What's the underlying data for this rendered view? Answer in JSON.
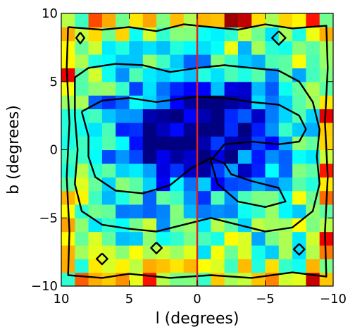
{
  "chart_data": {
    "type": "heatmap",
    "title": "",
    "xlabel": "l (degrees)",
    "ylabel": "b (degrees)",
    "xlim": [
      10,
      -10
    ],
    "ylim": [
      -10,
      10
    ],
    "x_ticks": [
      10,
      5,
      0,
      -5,
      -10
    ],
    "x_tick_labels": [
      "10",
      "5",
      "0",
      "−5",
      "−10"
    ],
    "y_ticks": [
      10,
      5,
      0,
      -5,
      -10
    ],
    "y_tick_labels": [
      "10",
      "5",
      "0",
      "−5",
      "−10"
    ],
    "grid": false,
    "colormap": "jet",
    "background_color": "#80ff80",
    "marker_line": {
      "axis": "x",
      "value": 0,
      "color": "#e02020"
    },
    "n_bins": 20,
    "contour_color": "#000000",
    "contours": [
      {
        "level": "inner",
        "points": [
          [
            8.5,
            2.8
          ],
          [
            7,
            3.6
          ],
          [
            5,
            3.8
          ],
          [
            3,
            3.5
          ],
          [
            1.5,
            3.7
          ],
          [
            0,
            3.9
          ],
          [
            -2,
            3.8
          ],
          [
            -4,
            3.5
          ],
          [
            -6,
            3.3
          ],
          [
            -7.5,
            2.5
          ],
          [
            -8,
            1.5
          ],
          [
            -7.5,
            0.6
          ],
          [
            -6,
            0.4
          ],
          [
            -4,
            0.6
          ],
          [
            -2,
            0.4
          ],
          [
            -1,
            -0.8
          ],
          [
            -1.5,
            -2.5
          ],
          [
            -3,
            -3.8
          ],
          [
            -5,
            -4.2
          ],
          [
            -6.5,
            -3.8
          ],
          [
            -6,
            -2.8
          ],
          [
            -4,
            -2.3
          ],
          [
            -2.5,
            -1.8
          ],
          [
            -2,
            -1
          ],
          [
            -1,
            -0.6
          ],
          [
            0.5,
            -1.4
          ],
          [
            2,
            -2.6
          ],
          [
            4,
            -3.2
          ],
          [
            6,
            -3.0
          ],
          [
            7.5,
            -2.0
          ],
          [
            8,
            -0.5
          ],
          [
            8,
            1
          ],
          [
            8.5,
            2.8
          ]
        ]
      },
      {
        "level": "middle",
        "points": [
          [
            9,
            5.3
          ],
          [
            8,
            6.0
          ],
          [
            6,
            6.3
          ],
          [
            4,
            6.2
          ],
          [
            2,
            5.7
          ],
          [
            0,
            6.0
          ],
          [
            -2,
            6.2
          ],
          [
            -4,
            6.0
          ],
          [
            -6,
            5.8
          ],
          [
            -7.5,
            5.0
          ],
          [
            -8.5,
            3.5
          ],
          [
            -9,
            1.5
          ],
          [
            -8.8,
            -0.5
          ],
          [
            -9,
            -2.5
          ],
          [
            -8.5,
            -4.5
          ],
          [
            -7,
            -5.7
          ],
          [
            -5,
            -6.0
          ],
          [
            -3,
            -5.5
          ],
          [
            -1,
            -5.0
          ],
          [
            1,
            -5.5
          ],
          [
            3,
            -6.0
          ],
          [
            5,
            -5.8
          ],
          [
            7,
            -5.5
          ],
          [
            8.5,
            -4.5
          ],
          [
            9,
            -2.5
          ],
          [
            8.8,
            0
          ],
          [
            9,
            2.5
          ],
          [
            9,
            5.3
          ]
        ]
      },
      {
        "level": "outer",
        "points": [
          [
            9.5,
            9.0
          ],
          [
            7,
            8.8
          ],
          [
            5,
            9.0
          ],
          [
            3,
            8.7
          ],
          [
            1,
            9.2
          ],
          [
            -1,
            9.0
          ],
          [
            -3,
            8.8
          ],
          [
            -5,
            9.2
          ],
          [
            -7,
            8.9
          ],
          [
            -9.5,
            9.1
          ],
          [
            -9.6,
            6
          ],
          [
            -9.4,
            2
          ],
          [
            -9.6,
            -2
          ],
          [
            -9.4,
            -6
          ],
          [
            -9.5,
            -9.3
          ],
          [
            -7,
            -9.0
          ],
          [
            -4,
            -9.4
          ],
          [
            -1,
            -9.2
          ],
          [
            2,
            -9.4
          ],
          [
            5,
            -9.1
          ],
          [
            7,
            -9.4
          ],
          [
            9.5,
            -9.2
          ],
          [
            9.4,
            -6
          ],
          [
            9.6,
            -2
          ],
          [
            9.4,
            2
          ],
          [
            9.6,
            6
          ],
          [
            9.5,
            9.0
          ]
        ]
      },
      {
        "level": "island-1",
        "points": [
          [
            8.6,
            8.6
          ],
          [
            8.3,
            8.2
          ],
          [
            8.6,
            7.8
          ],
          [
            8.9,
            8.2
          ],
          [
            8.6,
            8.6
          ]
        ]
      },
      {
        "level": "island-2",
        "points": [
          [
            -6.0,
            8.7
          ],
          [
            -6.5,
            8.2
          ],
          [
            -6.0,
            7.7
          ],
          [
            -5.5,
            8.2
          ],
          [
            -6.0,
            8.7
          ]
        ]
      },
      {
        "level": "island-3",
        "points": [
          [
            3.0,
            -6.8
          ],
          [
            2.6,
            -7.2
          ],
          [
            3.0,
            -7.6
          ],
          [
            3.4,
            -7.2
          ],
          [
            3.0,
            -6.8
          ]
        ]
      },
      {
        "level": "island-4",
        "points": [
          [
            -7.5,
            -6.9
          ],
          [
            -7.9,
            -7.3
          ],
          [
            -7.5,
            -7.7
          ],
          [
            -7.1,
            -7.3
          ],
          [
            -7.5,
            -6.9
          ]
        ]
      },
      {
        "level": "island-5",
        "points": [
          [
            7.0,
            -7.6
          ],
          [
            6.6,
            -8.0
          ],
          [
            7.0,
            -8.4
          ],
          [
            7.4,
            -8.0
          ],
          [
            7.0,
            -7.6
          ]
        ]
      }
    ]
  }
}
